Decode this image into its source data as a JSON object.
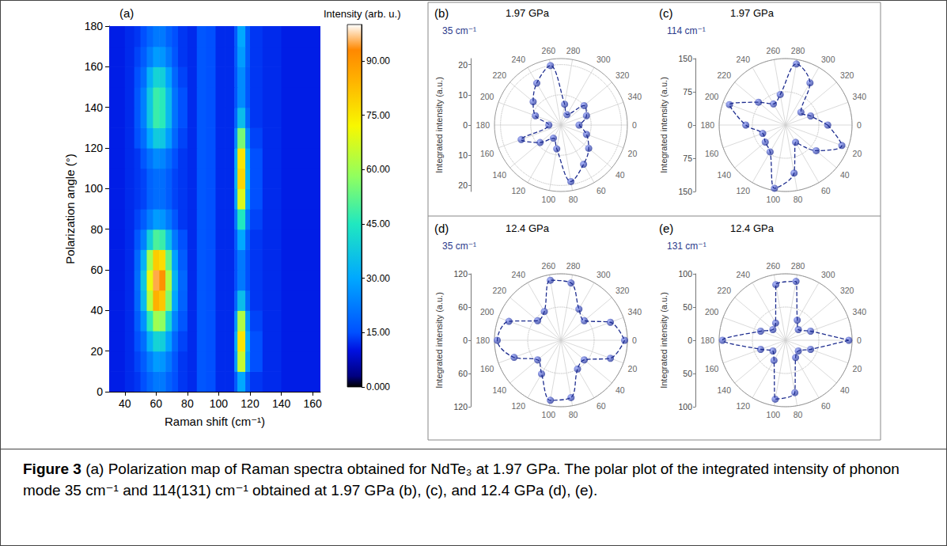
{
  "chart_data": [
    {
      "type": "heatmap",
      "panel": "(a)",
      "x_label": "Raman shift (cm⁻¹)",
      "y_label": "Polarization angle (°)",
      "xlim": [
        30,
        165
      ],
      "xticks": [
        40,
        60,
        80,
        100,
        120,
        140,
        160
      ],
      "ylim": [
        0,
        180
      ],
      "yticks": [
        0,
        20,
        40,
        60,
        80,
        100,
        120,
        140,
        160,
        180
      ],
      "x_edges": [
        30,
        40,
        46,
        50,
        54,
        58,
        62,
        66,
        70,
        74,
        80,
        86,
        92,
        98,
        104,
        110,
        112,
        117,
        120,
        128,
        140,
        165
      ],
      "y_edges": [
        0,
        10,
        20,
        30,
        40,
        50,
        60,
        70,
        80,
        90,
        100,
        110,
        120,
        130,
        140,
        150,
        160,
        170,
        180
      ],
      "cells": [
        [
          11,
          12,
          13,
          15,
          19,
          22,
          22,
          18,
          15,
          13,
          12,
          16,
          15,
          12,
          12,
          17,
          30,
          17,
          13,
          12,
          11
        ],
        [
          11,
          12,
          14,
          17,
          23,
          28,
          27,
          22,
          16,
          13,
          12,
          16,
          15,
          12,
          12,
          28,
          65,
          28,
          15,
          12,
          11
        ],
        [
          11,
          12,
          15,
          20,
          32,
          40,
          39,
          29,
          19,
          14,
          12,
          16,
          15,
          12,
          12,
          31,
          75,
          31,
          15,
          12,
          11
        ],
        [
          11,
          12,
          17,
          26,
          46,
          60,
          58,
          41,
          24,
          16,
          12,
          16,
          15,
          12,
          12,
          27,
          62,
          27,
          14,
          12,
          11
        ],
        [
          11,
          12,
          19,
          34,
          63,
          85,
          81,
          56,
          30,
          18,
          12,
          16,
          15,
          12,
          12,
          19,
          35,
          19,
          13,
          12,
          11
        ],
        [
          11,
          12,
          20,
          37,
          70,
          95,
          91,
          62,
          33,
          19,
          12,
          16,
          15,
          12,
          12,
          15,
          22,
          15,
          13,
          12,
          11
        ],
        [
          11,
          12,
          19,
          32,
          60,
          80,
          77,
          53,
          29,
          17,
          12,
          16,
          15,
          12,
          12,
          15,
          22,
          15,
          13,
          12,
          11
        ],
        [
          11,
          12,
          16,
          23,
          39,
          50,
          48,
          35,
          22,
          15,
          12,
          16,
          15,
          12,
          12,
          17,
          30,
          17,
          13,
          12,
          11
        ],
        [
          11,
          12,
          14,
          17,
          23,
          28,
          27,
          22,
          16,
          13,
          12,
          16,
          15,
          12,
          12,
          22,
          45,
          22,
          14,
          12,
          11
        ],
        [
          11,
          12,
          13,
          14,
          18,
          20,
          20,
          17,
          14,
          13,
          12,
          16,
          15,
          12,
          12,
          29,
          68,
          29,
          15,
          12,
          11
        ],
        [
          11,
          12,
          13,
          14,
          18,
          20,
          20,
          17,
          14,
          13,
          12,
          16,
          15,
          12,
          12,
          32,
          78,
          32,
          15,
          12,
          11
        ],
        [
          11,
          12,
          13,
          16,
          21,
          25,
          24,
          20,
          15,
          13,
          12,
          16,
          15,
          12,
          12,
          31,
          75,
          31,
          15,
          12,
          11
        ],
        [
          11,
          12,
          15,
          20,
          30,
          38,
          37,
          28,
          19,
          14,
          12,
          16,
          15,
          12,
          12,
          25,
          55,
          25,
          14,
          12,
          11
        ],
        [
          11,
          12,
          16,
          23,
          37,
          48,
          46,
          34,
          21,
          15,
          12,
          16,
          15,
          12,
          12,
          19,
          35,
          19,
          13,
          12,
          11
        ],
        [
          11,
          12,
          16,
          23,
          37,
          48,
          46,
          34,
          21,
          15,
          12,
          16,
          15,
          12,
          12,
          16,
          25,
          16,
          13,
          12,
          11
        ],
        [
          11,
          12,
          15,
          20,
          32,
          40,
          39,
          29,
          19,
          14,
          12,
          16,
          15,
          12,
          12,
          16,
          25,
          16,
          13,
          12,
          11
        ],
        [
          11,
          12,
          14,
          17,
          23,
          28,
          27,
          22,
          16,
          13,
          12,
          16,
          15,
          12,
          12,
          17,
          28,
          17,
          13,
          12,
          11
        ],
        [
          11,
          12,
          13,
          15,
          19,
          22,
          22,
          18,
          15,
          13,
          12,
          16,
          15,
          12,
          12,
          17,
          30,
          17,
          13,
          12,
          11
        ]
      ],
      "colorbar": {
        "title": "Intensity (arb. u.)",
        "lim": [
          0,
          100
        ],
        "ticks": [
          {
            "value": 0,
            "label": "0.000"
          },
          {
            "value": 15,
            "label": "15.00"
          },
          {
            "value": 30,
            "label": "30.00"
          },
          {
            "value": 45,
            "label": "45.00"
          },
          {
            "value": 60,
            "label": "60.00"
          },
          {
            "value": 75,
            "label": "75.00"
          },
          {
            "value": 90,
            "label": "90.00"
          }
        ]
      }
    },
    {
      "type": "polar",
      "panel": "(b)",
      "title": "1.97 GPa",
      "r_label": "Integrated intensity (a.u.)",
      "angle_lim": [
        0,
        360
      ],
      "angle_ticks": [
        0,
        20,
        40,
        60,
        80,
        100,
        120,
        140,
        160,
        180,
        200,
        220,
        240,
        260,
        280,
        300,
        320,
        340
      ],
      "rlim": [
        0,
        22
      ],
      "rticks": [
        0,
        10,
        20
      ],
      "series": [
        {
          "name": "35 cm⁻¹",
          "color": "#1e2d8f",
          "marker": "circle",
          "line_style": "dashed",
          "angles": [
            0,
            20,
            40,
            60,
            80,
            100,
            120,
            140,
            160,
            180,
            200,
            220,
            240,
            260,
            280,
            300,
            320,
            340
          ],
          "values": [
            6,
            9,
            12,
            15,
            19,
            8,
            5,
            9,
            14,
            4,
            9,
            12,
            16,
            20,
            7,
            4,
            10,
            9
          ]
        }
      ]
    },
    {
      "type": "polar",
      "panel": "(c)",
      "title": "1.97 GPa",
      "r_label": "Integrated intensity (a.u.)",
      "angle_lim": [
        0,
        360
      ],
      "angle_ticks": [
        0,
        20,
        40,
        60,
        80,
        100,
        120,
        140,
        160,
        180,
        200,
        220,
        240,
        260,
        280,
        300,
        320,
        340
      ],
      "rlim": [
        0,
        150
      ],
      "rticks": [
        0,
        75,
        150
      ],
      "series": [
        {
          "name": "114 cm⁻¹",
          "color": "#1e2d8f",
          "marker": "circle",
          "line_style": "dashed",
          "angles": [
            0,
            20,
            40,
            60,
            80,
            100,
            120,
            140,
            160,
            180,
            200,
            220,
            240,
            260,
            280,
            300,
            320,
            340
          ],
          "values": [
            95,
            135,
            90,
            45,
            110,
            145,
            70,
            60,
            55,
            90,
            135,
            80,
            55,
            70,
            140,
            110,
            45,
            60
          ]
        }
      ]
    },
    {
      "type": "polar",
      "panel": "(d)",
      "title": "12.4 GPa",
      "r_label": "Integrated intensity (a.u.)",
      "angle_lim": [
        0,
        360
      ],
      "angle_ticks": [
        0,
        20,
        40,
        60,
        80,
        100,
        120,
        140,
        160,
        180,
        200,
        220,
        240,
        260,
        280,
        300,
        320,
        340
      ],
      "rlim": [
        0,
        120
      ],
      "rticks": [
        0,
        60,
        120
      ],
      "series": [
        {
          "name": "35 cm⁻¹",
          "color": "#1e2d8f",
          "marker": "circle",
          "line_style": "dashed",
          "angles": [
            0,
            20,
            40,
            60,
            80,
            100,
            120,
            140,
            160,
            180,
            200,
            220,
            240,
            260,
            280,
            300,
            320,
            340
          ],
          "values": [
            115,
            95,
            55,
            60,
            105,
            110,
            70,
            55,
            90,
            115,
            100,
            55,
            60,
            110,
            105,
            65,
            55,
            95
          ]
        }
      ]
    },
    {
      "type": "polar",
      "panel": "(e)",
      "title": "12.4 GPa",
      "r_label": "Integrated intensity (a.u.)",
      "angle_lim": [
        0,
        360
      ],
      "angle_ticks": [
        0,
        20,
        40,
        60,
        80,
        100,
        120,
        140,
        160,
        180,
        200,
        220,
        240,
        260,
        280,
        300,
        320,
        340
      ],
      "rlim": [
        0,
        100
      ],
      "rticks": [
        0,
        50,
        100
      ],
      "series": [
        {
          "name": "131 cm⁻¹",
          "color": "#1e2d8f",
          "marker": "circle",
          "line_style": "dashed",
          "angles": [
            0,
            20,
            40,
            60,
            80,
            100,
            120,
            140,
            160,
            180,
            200,
            220,
            240,
            260,
            280,
            300,
            320,
            340
          ],
          "values": [
            95,
            40,
            25,
            30,
            80,
            90,
            35,
            25,
            40,
            95,
            40,
            25,
            30,
            85,
            90,
            35,
            25,
            40
          ]
        }
      ]
    }
  ],
  "caption": {
    "label": "Figure 3",
    "text": "(a) Polarization map of Raman spectra obtained for NdTe₃ at 1.97 GPa. The polar plot of the integrated intensity of phonon mode 35 cm⁻¹ and 114(131) cm⁻¹ obtained at 1.97 GPa (b), (c), and 12.4 GPa (d), (e)."
  }
}
